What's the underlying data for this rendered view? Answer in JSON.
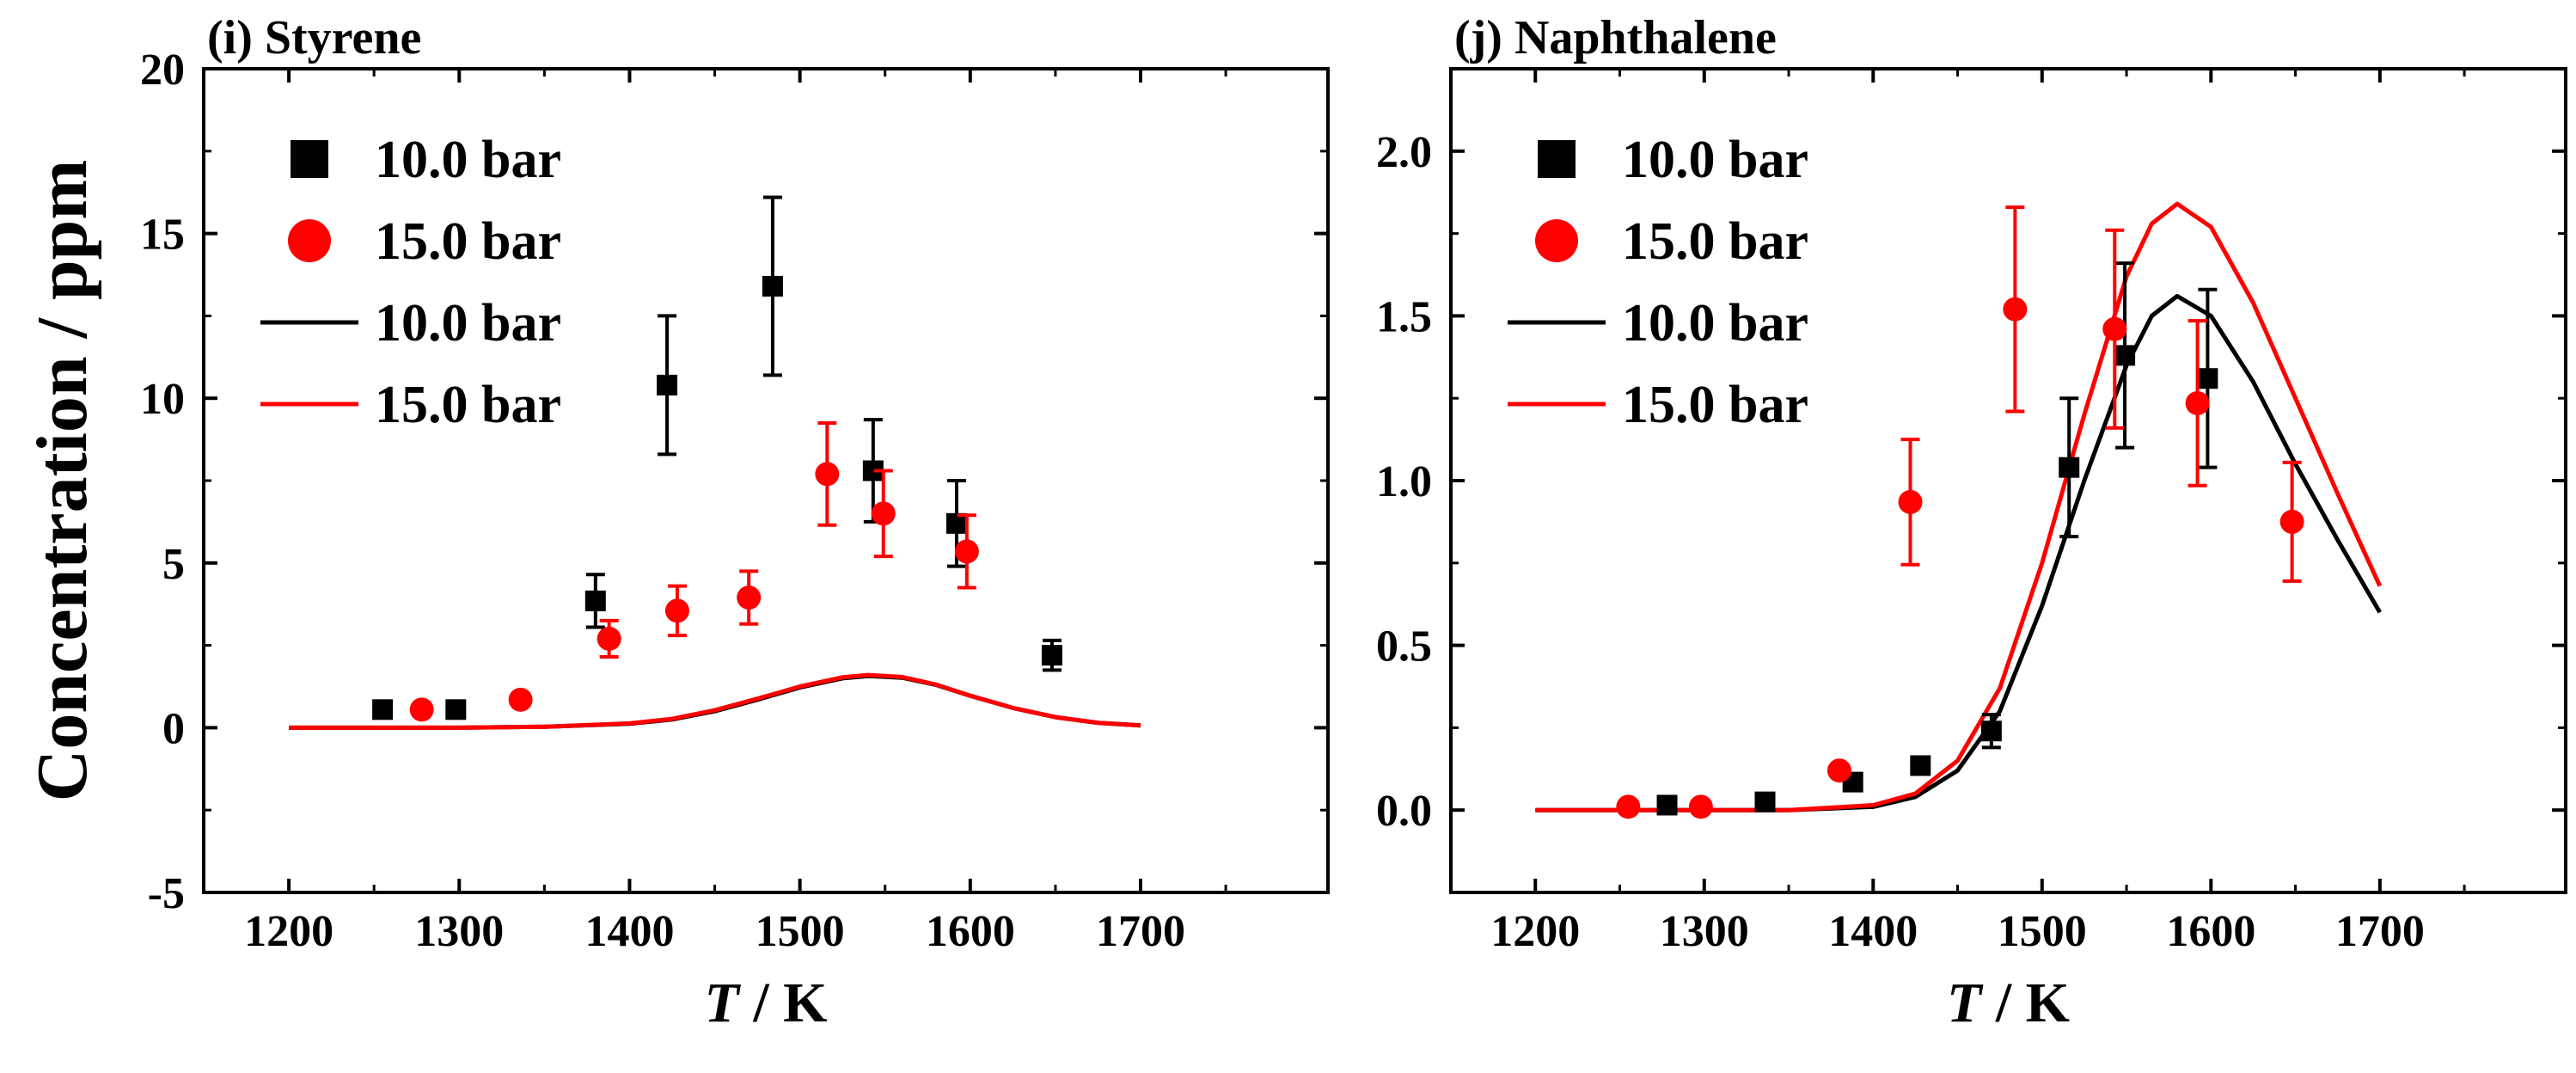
{
  "chart_data": [
    {
      "type": "scatter",
      "title": "(i) Styrene",
      "xlabel_italic": "T",
      "xlabel_unit": " / K",
      "ylabel": "Concentration / ppm",
      "xlim": [
        1150,
        1810
      ],
      "ylim": [
        -5,
        20
      ],
      "xticks": [
        "1200",
        "1300",
        "1400",
        "1500",
        "1600",
        "1700"
      ],
      "xtick_values": [
        1200,
        1300,
        1400,
        1500,
        1600,
        1700
      ],
      "yticks": [
        "-5",
        "0",
        "5",
        "10",
        "15",
        "20"
      ],
      "ytick_values": [
        -5,
        0,
        5,
        10,
        15,
        20
      ],
      "legend": [
        {
          "label": "10.0 bar",
          "marker": "square",
          "color": "#000000"
        },
        {
          "label": "15.0 bar",
          "marker": "circle",
          "color": "#ff0000"
        },
        {
          "label": "10.0 bar",
          "marker": "line",
          "color": "#000000"
        },
        {
          "label": "15.0 bar",
          "marker": "line",
          "color": "#ff0000"
        }
      ],
      "series": [
        {
          "name": "10.0 bar",
          "kind": "points",
          "marker": "square",
          "color": "#000000",
          "points": [
            {
              "x": 1255,
              "y": 0.55
            },
            {
              "x": 1298,
              "y": 0.55
            },
            {
              "x": 1380,
              "y": 3.85,
              "err": 0.8
            },
            {
              "x": 1422,
              "y": 10.4,
              "err": 2.1
            },
            {
              "x": 1484,
              "y": 13.4,
              "err": 2.7
            },
            {
              "x": 1543,
              "y": 7.8,
              "err": 1.55
            },
            {
              "x": 1592,
              "y": 6.2,
              "err": 1.3
            },
            {
              "x": 1648,
              "y": 2.2,
              "err": 0.45
            }
          ]
        },
        {
          "name": "15.0 bar",
          "kind": "points",
          "marker": "circle",
          "color": "#ff0000",
          "points": [
            {
              "x": 1278,
              "y": 0.55
            },
            {
              "x": 1336,
              "y": 0.85
            },
            {
              "x": 1388,
              "y": 2.7,
              "err": 0.55
            },
            {
              "x": 1428,
              "y": 3.55,
              "err": 0.75
            },
            {
              "x": 1470,
              "y": 3.95,
              "err": 0.8
            },
            {
              "x": 1516,
              "y": 7.7,
              "err": 1.55
            },
            {
              "x": 1549,
              "y": 6.5,
              "err": 1.3
            },
            {
              "x": 1598,
              "y": 5.35,
              "err": 1.1
            }
          ]
        },
        {
          "name": "10.0 bar",
          "kind": "line",
          "color": "#000000",
          "x": [
            1200,
            1250,
            1300,
            1350,
            1400,
            1425,
            1450,
            1475,
            1500,
            1525,
            1540,
            1560,
            1580,
            1600,
            1625,
            1650,
            1675,
            1700
          ],
          "y": [
            0.0,
            0.0,
            0.0,
            0.03,
            0.12,
            0.25,
            0.5,
            0.85,
            1.22,
            1.5,
            1.57,
            1.52,
            1.3,
            0.97,
            0.6,
            0.32,
            0.15,
            0.07
          ]
        },
        {
          "name": "15.0 bar",
          "kind": "line",
          "color": "#ff0000",
          "x": [
            1200,
            1250,
            1300,
            1350,
            1400,
            1425,
            1450,
            1475,
            1500,
            1525,
            1540,
            1560,
            1580,
            1600,
            1625,
            1650,
            1675,
            1700
          ],
          "y": [
            0.0,
            0.0,
            0.0,
            0.03,
            0.13,
            0.27,
            0.53,
            0.88,
            1.25,
            1.53,
            1.6,
            1.54,
            1.31,
            0.97,
            0.6,
            0.32,
            0.15,
            0.07
          ]
        }
      ]
    },
    {
      "type": "scatter",
      "title": "(j) Naphthalene",
      "xlabel_italic": "T",
      "xlabel_unit": " / K",
      "ylabel": "",
      "xlim": [
        1150,
        1810
      ],
      "ylim": [
        -0.25,
        2.25
      ],
      "xticks": [
        "1200",
        "1300",
        "1400",
        "1500",
        "1600",
        "1700"
      ],
      "xtick_values": [
        1200,
        1300,
        1400,
        1500,
        1600,
        1700
      ],
      "yticks": [
        "0.0",
        "0.5",
        "1.0",
        "1.5",
        "2.0"
      ],
      "ytick_values": [
        0,
        0.5,
        1.0,
        1.5,
        2.0
      ],
      "legend": [
        {
          "label": "10.0 bar",
          "marker": "square",
          "color": "#000000"
        },
        {
          "label": "15.0 bar",
          "marker": "circle",
          "color": "#ff0000"
        },
        {
          "label": "10.0 bar",
          "marker": "line",
          "color": "#000000"
        },
        {
          "label": "15.0 bar",
          "marker": "line",
          "color": "#ff0000"
        }
      ],
      "series": [
        {
          "name": "10.0 bar",
          "kind": "points",
          "marker": "square",
          "color": "#000000",
          "points": [
            {
              "x": 1278,
              "y": 0.015
            },
            {
              "x": 1336,
              "y": 0.025
            },
            {
              "x": 1388,
              "y": 0.085,
              "err": 0.02
            },
            {
              "x": 1428,
              "y": 0.135
            },
            {
              "x": 1470,
              "y": 0.24,
              "err": 0.05
            },
            {
              "x": 1516,
              "y": 1.04,
              "err": 0.21
            },
            {
              "x": 1549,
              "y": 1.38,
              "err": 0.28
            },
            {
              "x": 1598,
              "y": 1.31,
              "err": 0.27
            }
          ]
        },
        {
          "name": "15.0 bar",
          "kind": "points",
          "marker": "circle",
          "color": "#ff0000",
          "points": [
            {
              "x": 1255,
              "y": 0.01
            },
            {
              "x": 1298,
              "y": 0.01
            },
            {
              "x": 1380,
              "y": 0.12
            },
            {
              "x": 1422,
              "y": 0.935,
              "err": 0.19
            },
            {
              "x": 1484,
              "y": 1.52,
              "err": 0.31
            },
            {
              "x": 1543,
              "y": 1.46,
              "err": 0.3
            },
            {
              "x": 1592,
              "y": 1.235,
              "err": 0.25
            },
            {
              "x": 1648,
              "y": 0.875,
              "err": 0.18
            }
          ]
        },
        {
          "name": "10.0 bar",
          "kind": "line",
          "color": "#000000",
          "x": [
            1200,
            1300,
            1350,
            1400,
            1425,
            1450,
            1475,
            1500,
            1525,
            1550,
            1565,
            1580,
            1600,
            1625,
            1650,
            1675,
            1700
          ],
          "y": [
            0.0,
            0.0,
            0.0,
            0.01,
            0.04,
            0.12,
            0.3,
            0.62,
            1.0,
            1.35,
            1.5,
            1.56,
            1.5,
            1.3,
            1.05,
            0.82,
            0.6
          ]
        },
        {
          "name": "15.0 bar",
          "kind": "line",
          "color": "#ff0000",
          "x": [
            1200,
            1300,
            1350,
            1400,
            1425,
            1450,
            1475,
            1500,
            1525,
            1550,
            1565,
            1580,
            1600,
            1625,
            1650,
            1675,
            1700
          ],
          "y": [
            0.0,
            0.0,
            0.0,
            0.015,
            0.05,
            0.15,
            0.37,
            0.75,
            1.2,
            1.62,
            1.78,
            1.84,
            1.77,
            1.54,
            1.25,
            0.96,
            0.68
          ]
        }
      ]
    }
  ]
}
